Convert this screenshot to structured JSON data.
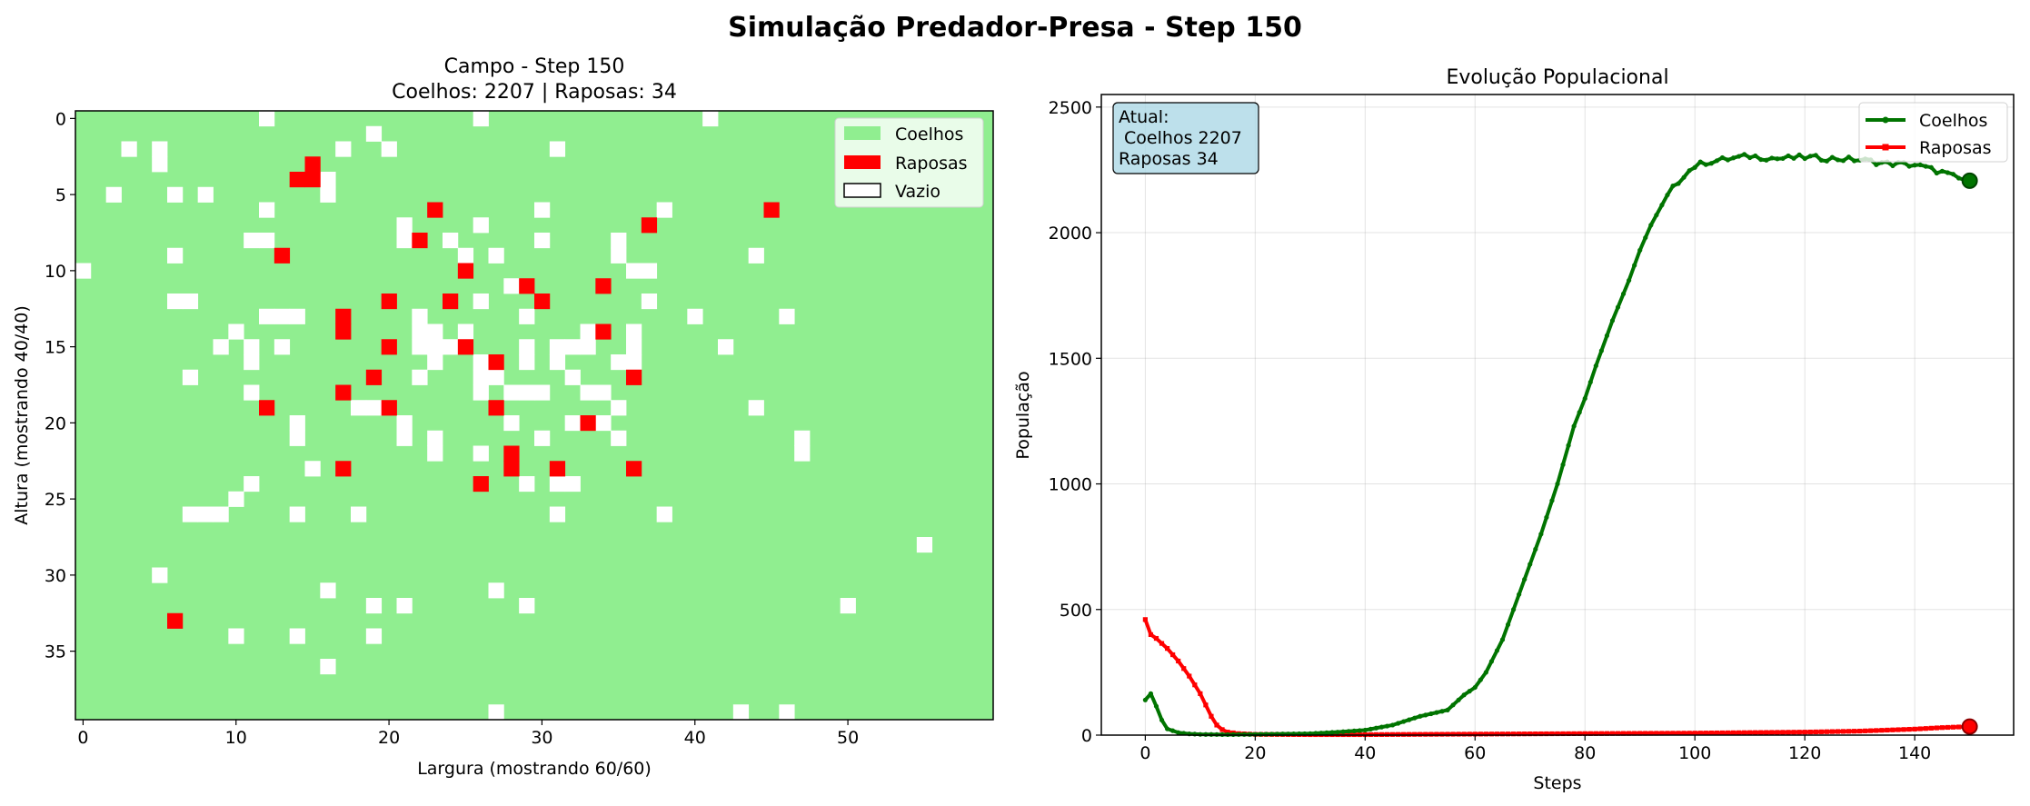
{
  "figure": {
    "suptitle": "Simulação Predador-Presa - Step 150"
  },
  "colors": {
    "rabbit": "#90ee90",
    "fox": "#ff0000",
    "empty": "#ffffff",
    "rabbit_line": "#007400",
    "fox_line": "#ff0000",
    "info_box": "#add8e6"
  },
  "chart_data": [
    {
      "type": "heatmap",
      "title_line1": "Campo - Step 150",
      "title_line2": "Coelhos: 2207 |  Raposas: 34",
      "xlabel": "Largura (mostrando 60/60)",
      "ylabel": "Altura (mostrando 40/40)",
      "grid_cols": 60,
      "grid_rows": 40,
      "xticks": [
        0,
        10,
        20,
        30,
        40,
        50
      ],
      "yticks": [
        0,
        5,
        10,
        15,
        20,
        25,
        30,
        35
      ],
      "legend": [
        {
          "label": "Coelhos",
          "color": "#90ee90"
        },
        {
          "label": "Raposas",
          "color": "#ff0000"
        },
        {
          "label": "Vazio",
          "color": "#ffffff"
        }
      ],
      "legend_position": "upper right",
      "foxes": [
        [
          15,
          3
        ],
        [
          14,
          4
        ],
        [
          15,
          4
        ],
        [
          23,
          6
        ],
        [
          45,
          6
        ],
        [
          37,
          7
        ],
        [
          22,
          8
        ],
        [
          13,
          9
        ],
        [
          25,
          10
        ],
        [
          29,
          11
        ],
        [
          34,
          11
        ],
        [
          20,
          12
        ],
        [
          24,
          12
        ],
        [
          30,
          12
        ],
        [
          17,
          13
        ],
        [
          17,
          14
        ],
        [
          34,
          14
        ],
        [
          20,
          15
        ],
        [
          25,
          15
        ],
        [
          27,
          16
        ],
        [
          19,
          17
        ],
        [
          36,
          17
        ],
        [
          17,
          18
        ],
        [
          12,
          19
        ],
        [
          20,
          19
        ],
        [
          27,
          19
        ],
        [
          33,
          20
        ],
        [
          28,
          22
        ],
        [
          17,
          23
        ],
        [
          28,
          23
        ],
        [
          31,
          23
        ],
        [
          36,
          23
        ],
        [
          26,
          24
        ],
        [
          6,
          33
        ]
      ],
      "empty": [
        [
          12,
          0
        ],
        [
          26,
          0
        ],
        [
          41,
          0
        ],
        [
          19,
          1
        ],
        [
          3,
          2
        ],
        [
          5,
          2
        ],
        [
          17,
          2
        ],
        [
          20,
          2
        ],
        [
          31,
          2
        ],
        [
          5,
          3
        ],
        [
          16,
          4
        ],
        [
          2,
          5
        ],
        [
          6,
          5
        ],
        [
          8,
          5
        ],
        [
          16,
          5
        ],
        [
          12,
          6
        ],
        [
          30,
          6
        ],
        [
          38,
          6
        ],
        [
          21,
          7
        ],
        [
          26,
          7
        ],
        [
          11,
          8
        ],
        [
          12,
          8
        ],
        [
          21,
          8
        ],
        [
          24,
          8
        ],
        [
          30,
          8
        ],
        [
          35,
          8
        ],
        [
          6,
          9
        ],
        [
          25,
          9
        ],
        [
          27,
          9
        ],
        [
          35,
          9
        ],
        [
          44,
          9
        ],
        [
          0,
          10
        ],
        [
          36,
          10
        ],
        [
          37,
          10
        ],
        [
          28,
          11
        ],
        [
          6,
          12
        ],
        [
          7,
          12
        ],
        [
          26,
          12
        ],
        [
          37,
          12
        ],
        [
          12,
          13
        ],
        [
          13,
          13
        ],
        [
          14,
          13
        ],
        [
          22,
          13
        ],
        [
          29,
          13
        ],
        [
          40,
          13
        ],
        [
          46,
          13
        ],
        [
          10,
          14
        ],
        [
          22,
          14
        ],
        [
          23,
          14
        ],
        [
          25,
          14
        ],
        [
          33,
          14
        ],
        [
          36,
          14
        ],
        [
          9,
          15
        ],
        [
          11,
          15
        ],
        [
          13,
          15
        ],
        [
          22,
          15
        ],
        [
          23,
          15
        ],
        [
          24,
          15
        ],
        [
          29,
          15
        ],
        [
          31,
          15
        ],
        [
          32,
          15
        ],
        [
          33,
          15
        ],
        [
          36,
          15
        ],
        [
          42,
          15
        ],
        [
          11,
          16
        ],
        [
          23,
          16
        ],
        [
          26,
          16
        ],
        [
          29,
          16
        ],
        [
          31,
          16
        ],
        [
          35,
          16
        ],
        [
          36,
          16
        ],
        [
          7,
          17
        ],
        [
          22,
          17
        ],
        [
          26,
          17
        ],
        [
          27,
          17
        ],
        [
          32,
          17
        ],
        [
          11,
          18
        ],
        [
          26,
          18
        ],
        [
          28,
          18
        ],
        [
          29,
          18
        ],
        [
          30,
          18
        ],
        [
          33,
          18
        ],
        [
          34,
          18
        ],
        [
          18,
          19
        ],
        [
          19,
          19
        ],
        [
          35,
          19
        ],
        [
          44,
          19
        ],
        [
          14,
          20
        ],
        [
          21,
          20
        ],
        [
          28,
          20
        ],
        [
          32,
          20
        ],
        [
          34,
          20
        ],
        [
          14,
          21
        ],
        [
          21,
          21
        ],
        [
          23,
          21
        ],
        [
          30,
          21
        ],
        [
          35,
          21
        ],
        [
          47,
          21
        ],
        [
          23,
          22
        ],
        [
          26,
          22
        ],
        [
          47,
          22
        ],
        [
          15,
          23
        ],
        [
          11,
          24
        ],
        [
          29,
          24
        ],
        [
          31,
          24
        ],
        [
          32,
          24
        ],
        [
          10,
          25
        ],
        [
          7,
          26
        ],
        [
          8,
          26
        ],
        [
          9,
          26
        ],
        [
          14,
          26
        ],
        [
          18,
          26
        ],
        [
          31,
          26
        ],
        [
          38,
          26
        ],
        [
          55,
          28
        ],
        [
          5,
          30
        ],
        [
          16,
          31
        ],
        [
          27,
          31
        ],
        [
          19,
          32
        ],
        [
          21,
          32
        ],
        [
          29,
          32
        ],
        [
          50,
          32
        ],
        [
          10,
          34
        ],
        [
          14,
          34
        ],
        [
          19,
          34
        ],
        [
          16,
          36
        ],
        [
          27,
          39
        ],
        [
          43,
          39
        ],
        [
          46,
          39
        ]
      ]
    },
    {
      "type": "line",
      "title": "Evolução Populacional",
      "xlabel": "Steps",
      "ylabel": "População",
      "xlim": [
        -8,
        158
      ],
      "ylim": [
        0,
        2550
      ],
      "xticks": [
        0,
        20,
        40,
        60,
        80,
        100,
        120,
        140
      ],
      "yticks": [
        0,
        500,
        1000,
        1500,
        2000,
        2500
      ],
      "grid": true,
      "legend_position": "upper right",
      "info_box": {
        "line1": "Atual:",
        "line2": " Coelhos 2207",
        "line3": "Raposas 34"
      },
      "series": [
        {
          "name": "Coelhos",
          "color": "#007400",
          "marker": "circle",
          "keypoints": [
            [
              0,
              140
            ],
            [
              1,
              165
            ],
            [
              2,
              115
            ],
            [
              3,
              60
            ],
            [
              4,
              25
            ],
            [
              6,
              10
            ],
            [
              8,
              5
            ],
            [
              10,
              3
            ],
            [
              15,
              2
            ],
            [
              20,
              3
            ],
            [
              30,
              6
            ],
            [
              35,
              12
            ],
            [
              40,
              20
            ],
            [
              45,
              40
            ],
            [
              50,
              75
            ],
            [
              52,
              85
            ],
            [
              55,
              100
            ],
            [
              58,
              160
            ],
            [
              60,
              190
            ],
            [
              62,
              250
            ],
            [
              65,
              380
            ],
            [
              68,
              560
            ],
            [
              70,
              680
            ],
            [
              72,
              800
            ],
            [
              75,
              1000
            ],
            [
              78,
              1230
            ],
            [
              80,
              1340
            ],
            [
              82,
              1470
            ],
            [
              85,
              1650
            ],
            [
              88,
              1810
            ],
            [
              90,
              1930
            ],
            [
              92,
              2030
            ],
            [
              95,
              2150
            ],
            [
              98,
              2230
            ],
            [
              100,
              2265
            ],
            [
              102,
              2280
            ],
            [
              105,
              2290
            ],
            [
              110,
              2305
            ],
            [
              115,
              2295
            ],
            [
              120,
              2300
            ],
            [
              125,
              2295
            ],
            [
              130,
              2290
            ],
            [
              135,
              2275
            ],
            [
              140,
              2270
            ],
            [
              145,
              2240
            ],
            [
              148,
              2215
            ],
            [
              150,
              2207
            ]
          ],
          "final_value": 2207
        },
        {
          "name": "Raposas",
          "color": "#ff0000",
          "marker": "square",
          "keypoints": [
            [
              0,
              460
            ],
            [
              1,
              400
            ],
            [
              2,
              385
            ],
            [
              3,
              365
            ],
            [
              4,
              345
            ],
            [
              5,
              320
            ],
            [
              6,
              295
            ],
            [
              7,
              265
            ],
            [
              8,
              235
            ],
            [
              9,
              200
            ],
            [
              10,
              165
            ],
            [
              11,
              120
            ],
            [
              12,
              75
            ],
            [
              13,
              40
            ],
            [
              14,
              22
            ],
            [
              15,
              12
            ],
            [
              17,
              6
            ],
            [
              20,
              3
            ],
            [
              30,
              2
            ],
            [
              40,
              2
            ],
            [
              60,
              4
            ],
            [
              80,
              6
            ],
            [
              100,
              8
            ],
            [
              120,
              12
            ],
            [
              130,
              16
            ],
            [
              140,
              24
            ],
            [
              145,
              30
            ],
            [
              150,
              34
            ]
          ],
          "final_value": 34
        }
      ]
    }
  ]
}
